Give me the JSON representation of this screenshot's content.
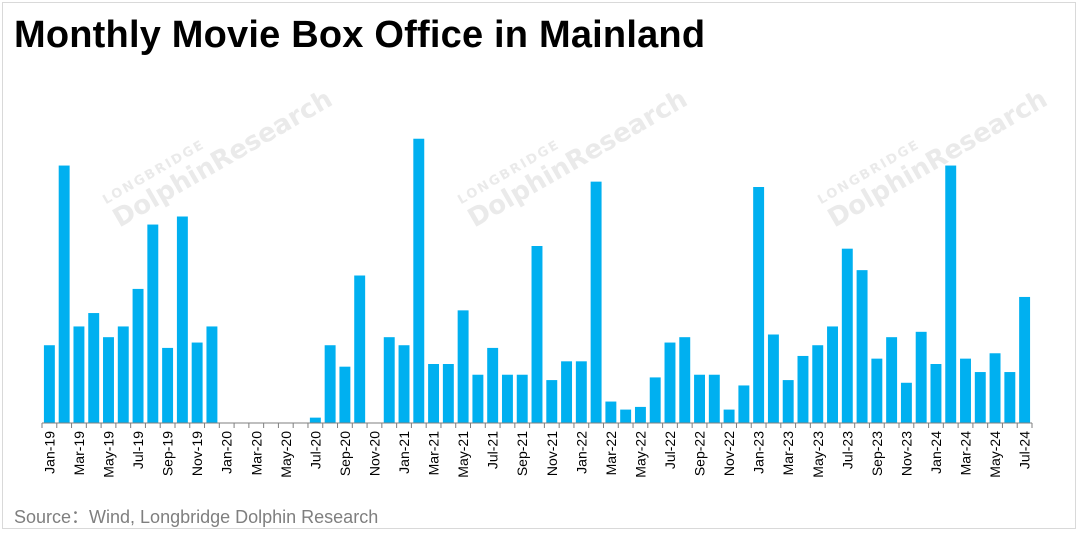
{
  "title": "Monthly Movie Box Office in Mainland",
  "source": "Source：Wind, Longbridge Dolphin Research",
  "colors": {
    "bar": "#00B0F0",
    "axis": "#7f7f7f",
    "title": "#000000",
    "source": "#7f7f7f"
  },
  "watermark": {
    "brand": "DolphinResearch",
    "sub": "LONGBRIDGE"
  },
  "chart_data": {
    "type": "bar",
    "title": "Monthly Movie Box Office in Mainland",
    "xlabel": "",
    "ylabel": "",
    "grid": false,
    "legend": "none",
    "categories": [
      "Jan-19",
      "Feb-19",
      "Mar-19",
      "Apr-19",
      "May-19",
      "Jun-19",
      "Jul-19",
      "Aug-19",
      "Sep-19",
      "Oct-19",
      "Nov-19",
      "Dec-19",
      "Jan-20",
      "Feb-20",
      "Mar-20",
      "Apr-20",
      "May-20",
      "Jun-20",
      "Jul-20",
      "Aug-20",
      "Sep-20",
      "Oct-20",
      "Nov-20",
      "Dec-20",
      "Jan-21",
      "Feb-21",
      "Mar-21",
      "Apr-21",
      "May-21",
      "Jun-21",
      "Jul-21",
      "Aug-21",
      "Sep-21",
      "Oct-21",
      "Nov-21",
      "Dec-21",
      "Jan-22",
      "Feb-22",
      "Mar-22",
      "Apr-22",
      "May-22",
      "Jun-22",
      "Jul-22",
      "Aug-22",
      "Sep-22",
      "Oct-22",
      "Nov-22",
      "Dec-22",
      "Jan-23",
      "Feb-23",
      "Mar-23",
      "Apr-23",
      "May-23",
      "Jun-23",
      "Jul-23",
      "Aug-23",
      "Sep-23",
      "Oct-23",
      "Nov-23",
      "Dec-23",
      "Jan-24",
      "Feb-24",
      "Mar-24",
      "Apr-24",
      "May-24",
      "Jun-24",
      "Jul-24"
    ],
    "tick_labels": [
      "Jan-19",
      "Mar-19",
      "May-19",
      "Jul-19",
      "Sep-19",
      "Nov-19",
      "Jan-20",
      "Mar-20",
      "May-20",
      "Jul-20",
      "Sep-20",
      "Nov-20",
      "Jan-21",
      "Mar-21",
      "May-21",
      "Jul-21",
      "Sep-21",
      "Nov-21",
      "Jan-22",
      "Mar-22",
      "May-22",
      "Jul-22",
      "Sep-22",
      "Nov-22",
      "Jan-23",
      "Mar-23",
      "May-23",
      "Jul-23",
      "Sep-23",
      "Nov-23",
      "Jan-24",
      "Mar-24",
      "May-24",
      "Jul-24"
    ],
    "values": [
      29,
      96,
      36,
      41,
      32,
      36,
      50,
      74,
      28,
      77,
      30,
      36,
      0,
      0,
      0,
      0,
      0,
      0,
      2,
      29,
      21,
      55,
      0,
      32,
      29,
      106,
      22,
      22,
      42,
      18,
      28,
      18,
      18,
      66,
      16,
      23,
      23,
      90,
      8,
      5,
      6,
      17,
      30,
      32,
      18,
      18,
      5,
      14,
      88,
      33,
      16,
      25,
      29,
      36,
      65,
      57,
      24,
      32,
      15,
      34,
      22,
      96,
      24,
      19,
      26,
      19,
      47
    ],
    "ylim": [
      0,
      110
    ]
  }
}
